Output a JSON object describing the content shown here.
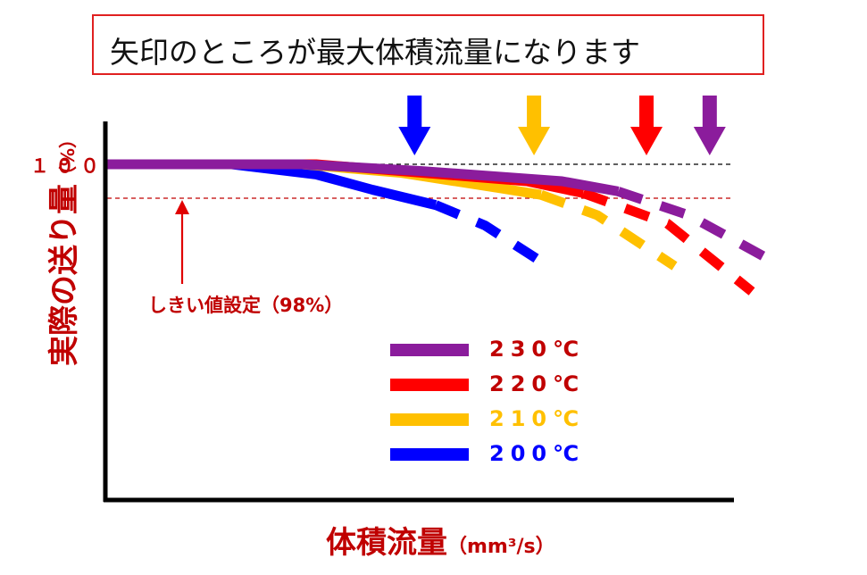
{
  "title": "矢印のところが最大体積流量になります",
  "chart_data": {
    "type": "line",
    "xlabel": "体積流量",
    "xunit": "（mm³/s）",
    "ylabel": "実際の送り量",
    "yunit": "（%）",
    "yticks": [
      "１００"
    ],
    "threshold": {
      "value": 98,
      "label": "しきい値設定（98%）"
    },
    "reference_line": 100,
    "xlim": [
      0,
      100
    ],
    "ylim": [
      80,
      101.5
    ],
    "series": [
      {
        "name": "230℃",
        "color": "#8b1c9c",
        "points": [
          [
            0,
            100
          ],
          [
            28,
            100
          ],
          [
            45,
            99.6
          ],
          [
            65,
            99.0
          ],
          [
            73,
            98.4
          ]
        ],
        "dashed_points": [
          [
            73,
            98.4
          ],
          [
            83,
            97.0
          ],
          [
            94,
            94.5
          ]
        ],
        "max_flow_x": 86
      },
      {
        "name": "220℃",
        "color": "#ff0000",
        "points": [
          [
            0,
            100
          ],
          [
            30,
            100
          ],
          [
            48,
            99.4
          ],
          [
            60,
            99.0
          ],
          [
            68,
            98.3
          ]
        ],
        "dashed_points": [
          [
            68,
            98.3
          ],
          [
            80,
            96.5
          ],
          [
            92,
            92.5
          ]
        ],
        "max_flow_x": 77
      },
      {
        "name": "210℃",
        "color": "#ffc000",
        "points": [
          [
            0,
            100
          ],
          [
            28,
            100
          ],
          [
            42,
            99.5
          ],
          [
            56,
            98.6
          ],
          [
            62,
            98.2
          ]
        ],
        "dashed_points": [
          [
            62,
            98.2
          ],
          [
            70,
            97.0
          ],
          [
            81,
            94.0
          ]
        ],
        "max_flow_x": 61
      },
      {
        "name": "200℃",
        "color": "#0000ff",
        "points": [
          [
            0,
            100
          ],
          [
            18,
            100
          ],
          [
            30,
            99.4
          ],
          [
            38,
            98.5
          ],
          [
            47,
            97.6
          ]
        ],
        "dashed_points": [
          [
            47,
            97.6
          ],
          [
            54,
            96.4
          ],
          [
            63,
            94.0
          ]
        ],
        "max_flow_x": 44
      }
    ]
  }
}
